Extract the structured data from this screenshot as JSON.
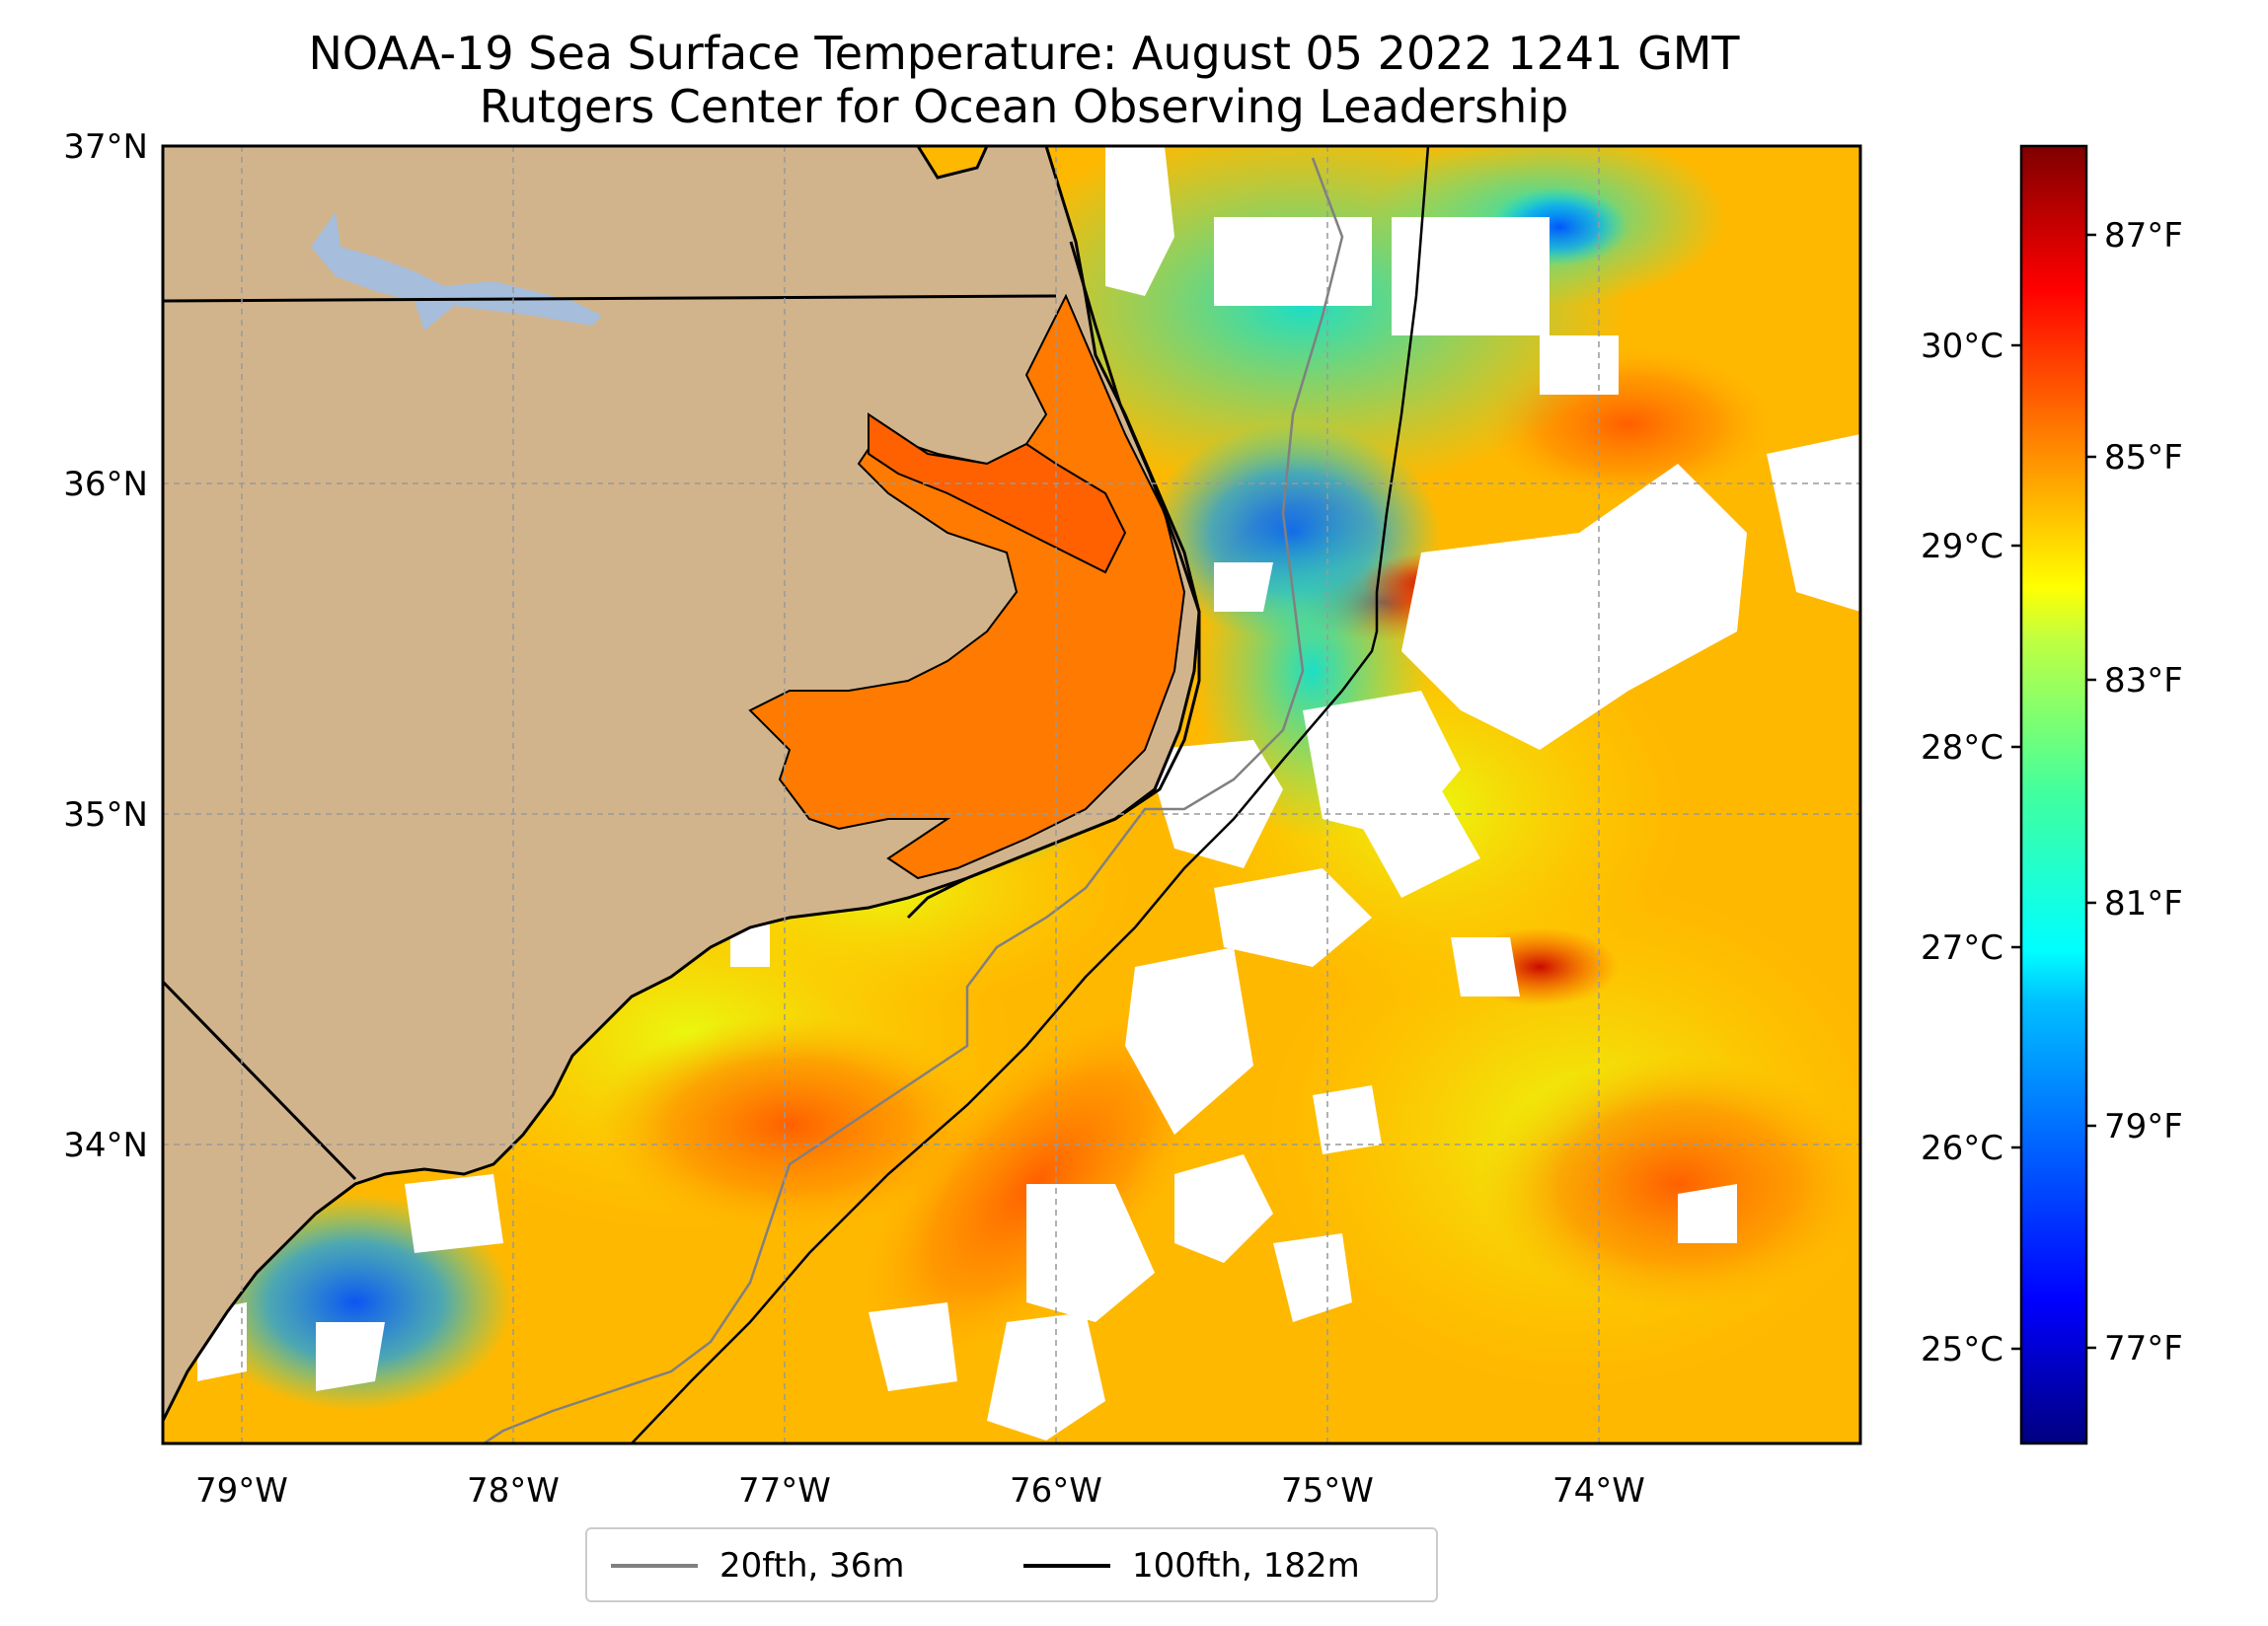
{
  "title": {
    "line1": "NOAA-19 Sea Surface Temperature: August 05 2022 1241 GMT",
    "line2": "Rutgers Center for Ocean Observing Leadership"
  },
  "map": {
    "lat_range": [
      33.1,
      37.0
    ],
    "lon_range": [
      -79.3,
      -73.05
    ],
    "lat_ticks": [
      "37°N",
      "36°N",
      "35°N",
      "34°N"
    ],
    "lon_ticks": [
      "79°W",
      "78°W",
      "77°W",
      "76°W",
      "75°W",
      "74°W"
    ],
    "colors": {
      "land": "#d2b48c",
      "water_lake": "#a6bddb",
      "cloud": "#ffffff",
      "coastline": "#000000",
      "isobath_20fth": "#808080",
      "isobath_100fth": "#000000",
      "grid": "#999999"
    }
  },
  "colorbar": {
    "colormap": "jet",
    "celsius_ticks": [
      "30°C",
      "29°C",
      "28°C",
      "27°C",
      "26°C",
      "25°C"
    ],
    "fahrenheit_ticks": [
      "87°F",
      "85°F",
      "83°F",
      "81°F",
      "79°F",
      "77°F"
    ]
  },
  "legend": {
    "items": [
      {
        "label": "20fth, 36m",
        "color": "#808080"
      },
      {
        "label": "100fth, 182m",
        "color": "#000000"
      }
    ]
  }
}
